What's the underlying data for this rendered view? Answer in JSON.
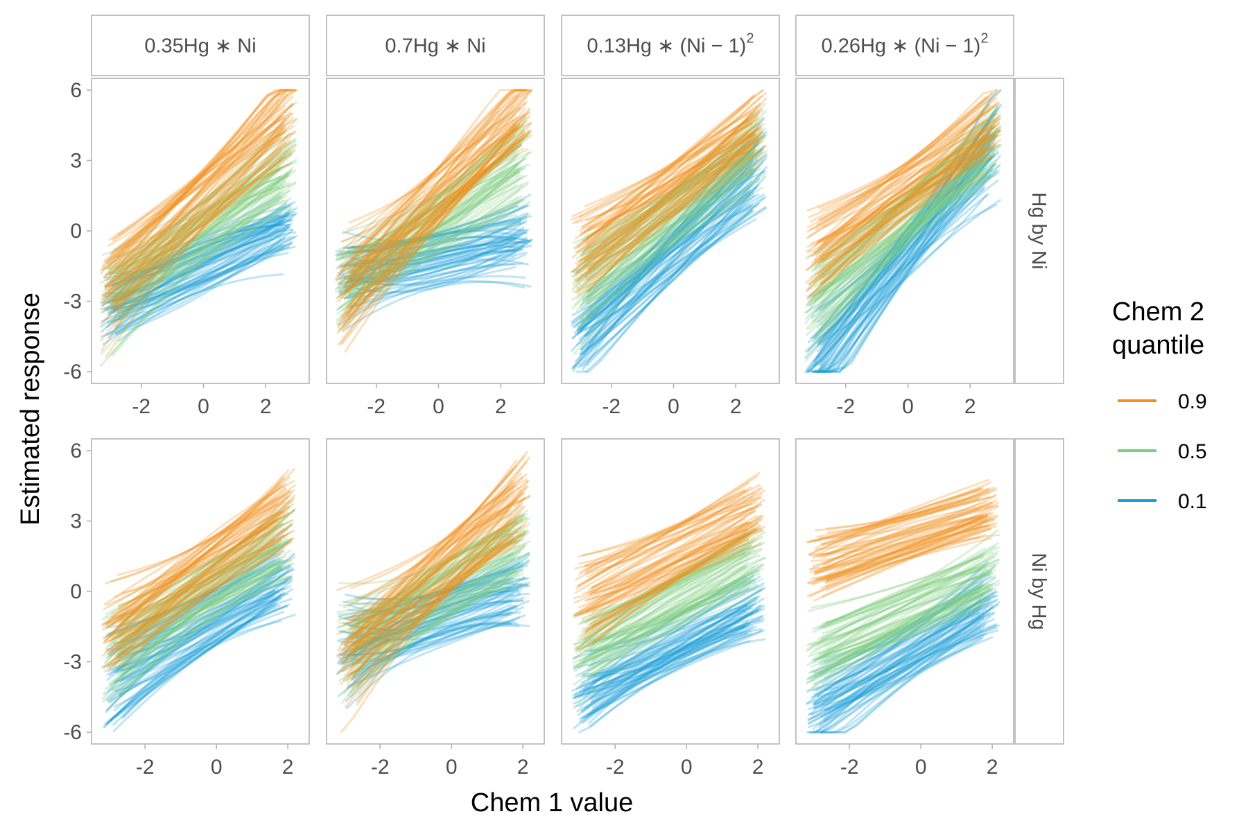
{
  "chart_data": {
    "type": "line",
    "xlabel": "Chem 1 value",
    "ylabel": "Estimated response",
    "xticks": [
      -2,
      0,
      2
    ],
    "yticks": [
      -6,
      -3,
      0,
      3,
      6
    ],
    "ylim": [
      -6.5,
      6.5
    ],
    "legend": {
      "title_lines": [
        "Chem 2",
        "quantile"
      ],
      "placement": "right",
      "entries": [
        {
          "label": "0.9",
          "color": "#f28e1c"
        },
        {
          "label": "0.5",
          "color": "#7fcd7f"
        },
        {
          "label": "0.1",
          "color": "#1a9fd6"
        }
      ]
    },
    "columns": [
      {
        "label_parts": [
          "0.35Hg",
          " ∗ ",
          "Ni"
        ],
        "squared": false
      },
      {
        "label_parts": [
          "0.7Hg",
          " ∗ ",
          "Ni"
        ],
        "squared": false
      },
      {
        "label_parts": [
          "0.13Hg",
          " ∗ ",
          "(Ni − 1)",
          "2"
        ],
        "squared": true
      },
      {
        "label_parts": [
          "0.26Hg",
          " ∗ ",
          "(Ni − 1)",
          "2"
        ],
        "squared": true
      }
    ],
    "rows": [
      {
        "label": "Hg by Ni",
        "xlim": [
          -3.6,
          3.4
        ]
      },
      {
        "label": "Ni by Hg",
        "xlim": [
          -3.5,
          2.6
        ]
      }
    ],
    "panels": [
      {
        "row": 0,
        "col": 0,
        "xrange": [
          -3.3,
          3.0
        ],
        "series": [
          {
            "quantile": "0.9",
            "slope": 1.25,
            "intercept": 1.4,
            "spread": 1.3,
            "curvature": 0.08
          },
          {
            "quantile": "0.5",
            "slope": 0.95,
            "intercept": 0.0,
            "spread": 1.3,
            "curvature": 0.08
          },
          {
            "quantile": "0.1",
            "slope": 0.6,
            "intercept": -1.5,
            "spread": 1.3,
            "curvature": 0.1
          }
        ]
      },
      {
        "row": 0,
        "col": 1,
        "xrange": [
          -3.3,
          3.0
        ],
        "series": [
          {
            "quantile": "0.9",
            "slope": 1.3,
            "intercept": 1.5,
            "spread": 1.3,
            "curvature": 0.08
          },
          {
            "quantile": "0.5",
            "slope": 0.95,
            "intercept": 0.3,
            "spread": 1.3,
            "curvature": 0.08
          },
          {
            "quantile": "0.1",
            "slope": 0.3,
            "intercept": -1.2,
            "spread": 1.2,
            "curvature": 0.12
          }
        ]
      },
      {
        "row": 0,
        "col": 2,
        "xrange": [
          -3.3,
          3.0
        ],
        "series": [
          {
            "quantile": "0.9",
            "slope": 0.95,
            "intercept": 1.8,
            "spread": 1.2,
            "curvature": 0.05
          },
          {
            "quantile": "0.5",
            "slope": 1.05,
            "intercept": 0.6,
            "spread": 1.2,
            "curvature": 0.05
          },
          {
            "quantile": "0.1",
            "slope": 1.25,
            "intercept": -0.9,
            "spread": 1.2,
            "curvature": 0.07
          }
        ]
      },
      {
        "row": 0,
        "col": 3,
        "xrange": [
          -3.3,
          3.0
        ],
        "series": [
          {
            "quantile": "0.9",
            "slope": 0.95,
            "intercept": 1.8,
            "spread": 1.2,
            "curvature": 0.05
          },
          {
            "quantile": "0.5",
            "slope": 1.2,
            "intercept": 0.5,
            "spread": 1.2,
            "curvature": 0.05
          },
          {
            "quantile": "0.1",
            "slope": 1.55,
            "intercept": -0.9,
            "spread": 1.1,
            "curvature": 0.1
          }
        ]
      },
      {
        "row": 1,
        "col": 0,
        "xrange": [
          -3.2,
          2.2
        ],
        "series": [
          {
            "quantile": "0.9",
            "slope": 1.1,
            "intercept": 1.4,
            "spread": 1.3,
            "curvature": 0.1
          },
          {
            "quantile": "0.5",
            "slope": 0.95,
            "intercept": 0.2,
            "spread": 1.3,
            "curvature": 0.1
          },
          {
            "quantile": "0.1",
            "slope": 0.9,
            "intercept": -1.1,
            "spread": 1.3,
            "curvature": 0.12
          }
        ]
      },
      {
        "row": 1,
        "col": 1,
        "xrange": [
          -3.2,
          2.2
        ],
        "series": [
          {
            "quantile": "0.9",
            "slope": 1.3,
            "intercept": 1.3,
            "spread": 1.3,
            "curvature": 0.15
          },
          {
            "quantile": "0.5",
            "slope": 0.9,
            "intercept": 0.2,
            "spread": 1.3,
            "curvature": 0.15
          },
          {
            "quantile": "0.1",
            "slope": 0.5,
            "intercept": -1.0,
            "spread": 1.2,
            "curvature": 0.18
          }
        ]
      },
      {
        "row": 1,
        "col": 2,
        "xrange": [
          -3.2,
          2.2
        ],
        "series": [
          {
            "quantile": "0.9",
            "slope": 0.8,
            "intercept": 1.9,
            "spread": 1.2,
            "curvature": 0.06
          },
          {
            "quantile": "0.5",
            "slope": 0.8,
            "intercept": -0.2,
            "spread": 1.2,
            "curvature": 0.06
          },
          {
            "quantile": "0.1",
            "slope": 0.75,
            "intercept": -2.0,
            "spread": 1.2,
            "curvature": 0.1
          }
        ]
      },
      {
        "row": 1,
        "col": 3,
        "xrange": [
          -3.2,
          2.2
        ],
        "series": [
          {
            "quantile": "0.9",
            "slope": 0.5,
            "intercept": 2.6,
            "spread": 1.1,
            "curvature": 0.06
          },
          {
            "quantile": "0.5",
            "slope": 0.7,
            "intercept": -0.6,
            "spread": 1.2,
            "curvature": 0.06
          },
          {
            "quantile": "0.1",
            "slope": 0.95,
            "intercept": -2.3,
            "spread": 1.2,
            "curvature": 0.1
          }
        ]
      }
    ],
    "lines_per_series": 60
  }
}
